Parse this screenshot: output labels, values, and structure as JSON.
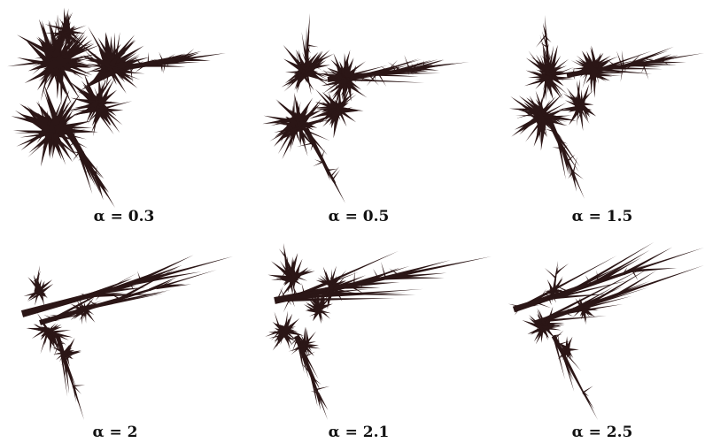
{
  "panels": [
    {
      "caption": "α = 0.3"
    },
    {
      "caption": "α = 0.5"
    },
    {
      "caption": "α = 1.5"
    },
    {
      "caption": "α = 2"
    },
    {
      "caption": "α = 2.1"
    },
    {
      "caption": "α = 2.5"
    }
  ]
}
